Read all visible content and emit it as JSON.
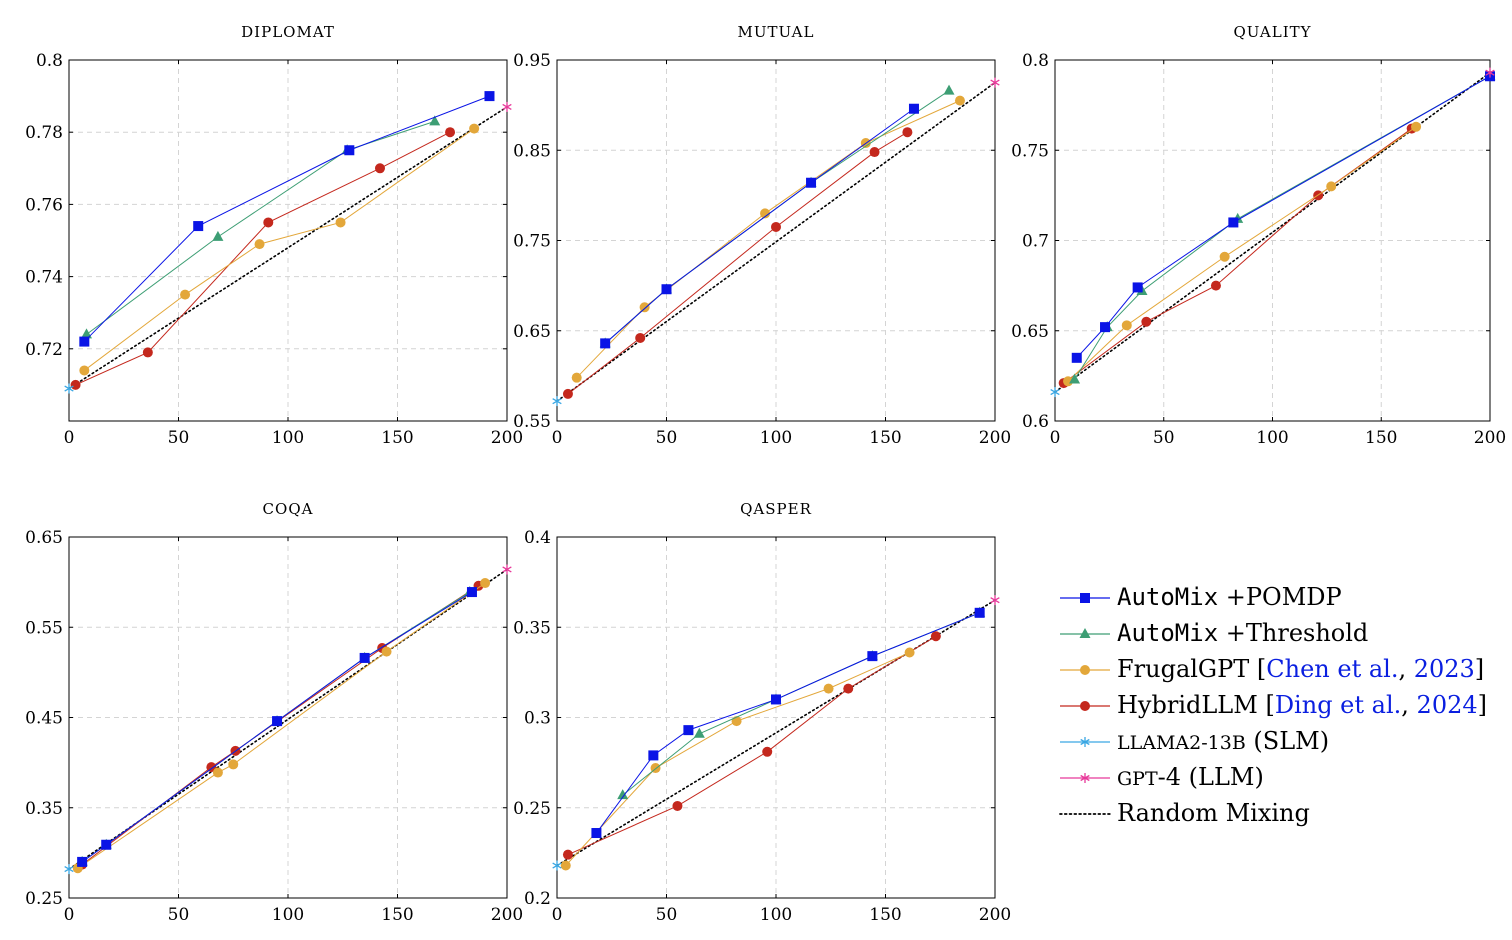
{
  "chart_data": [
    {
      "type": "line",
      "title": "DIPLOMAT",
      "xlim": [
        0,
        200
      ],
      "ylim": [
        0.7,
        0.8
      ],
      "xticks": [
        0,
        50,
        100,
        150,
        200
      ],
      "yticks": [
        0.72,
        0.74,
        0.76,
        0.78,
        0.8
      ],
      "ytick_labels": [
        "0.72",
        "0.74",
        "0.76",
        "0.78",
        "0.8"
      ],
      "grid": true,
      "series": [
        {
          "key": "pomdp",
          "x": [
            7,
            59,
            128,
            192
          ],
          "y": [
            0.722,
            0.754,
            0.775,
            0.79
          ]
        },
        {
          "key": "threshold",
          "x": [
            8,
            68,
            127,
            167
          ],
          "y": [
            0.724,
            0.751,
            0.775,
            0.783
          ]
        },
        {
          "key": "frugal",
          "x": [
            7,
            53,
            87,
            124,
            185
          ],
          "y": [
            0.714,
            0.735,
            0.749,
            0.755,
            0.781
          ]
        },
        {
          "key": "hybrid",
          "x": [
            3,
            36,
            91,
            142,
            174
          ],
          "y": [
            0.71,
            0.719,
            0.755,
            0.77,
            0.78
          ]
        },
        {
          "key": "slm",
          "x": [
            0
          ],
          "y": [
            0.709
          ]
        },
        {
          "key": "llm",
          "x": [
            200
          ],
          "y": [
            0.787
          ]
        },
        {
          "key": "random",
          "x": [
            0,
            200
          ],
          "y": [
            0.709,
            0.787
          ]
        }
      ]
    },
    {
      "type": "line",
      "title": "MUTUAL",
      "xlim": [
        0,
        200
      ],
      "ylim": [
        0.55,
        0.95
      ],
      "xticks": [
        0,
        50,
        100,
        150,
        200
      ],
      "yticks": [
        0.55,
        0.65,
        0.75,
        0.85,
        0.95
      ],
      "ytick_labels": [
        "0.55",
        "0.65",
        "0.75",
        "0.85",
        "0.95"
      ],
      "grid": true,
      "series": [
        {
          "key": "pomdp",
          "x": [
            22,
            50,
            116,
            163
          ],
          "y": [
            0.636,
            0.696,
            0.814,
            0.896
          ]
        },
        {
          "key": "threshold",
          "x": [
            22,
            50,
            116,
            179
          ],
          "y": [
            0.636,
            0.696,
            0.814,
            0.916
          ]
        },
        {
          "key": "frugal",
          "x": [
            9,
            40,
            95,
            141,
            184
          ],
          "y": [
            0.598,
            0.676,
            0.78,
            0.858,
            0.905
          ]
        },
        {
          "key": "hybrid",
          "x": [
            5,
            38,
            100,
            145,
            160
          ],
          "y": [
            0.58,
            0.642,
            0.765,
            0.848,
            0.87
          ]
        },
        {
          "key": "slm",
          "x": [
            0
          ],
          "y": [
            0.572
          ]
        },
        {
          "key": "llm",
          "x": [
            200
          ],
          "y": [
            0.925
          ]
        },
        {
          "key": "random",
          "x": [
            0,
            200
          ],
          "y": [
            0.572,
            0.925
          ]
        }
      ]
    },
    {
      "type": "line",
      "title": "QUALITY",
      "xlim": [
        0,
        200
      ],
      "ylim": [
        0.6,
        0.8
      ],
      "xticks": [
        0,
        50,
        100,
        150,
        200
      ],
      "yticks": [
        0.6,
        0.65,
        0.7,
        0.75,
        0.8
      ],
      "ytick_labels": [
        "0.6",
        "0.65",
        "0.7",
        "0.75",
        "0.8"
      ],
      "grid": true,
      "series": [
        {
          "key": "pomdp",
          "x": [
            10,
            23,
            38,
            82,
            200
          ],
          "y": [
            0.635,
            0.652,
            0.674,
            0.71,
            0.791
          ]
        },
        {
          "key": "threshold",
          "x": [
            9,
            24,
            40,
            84,
            200
          ],
          "y": [
            0.623,
            0.652,
            0.672,
            0.712,
            0.791
          ]
        },
        {
          "key": "frugal",
          "x": [
            6,
            33,
            78,
            127,
            166
          ],
          "y": [
            0.622,
            0.653,
            0.691,
            0.73,
            0.763
          ]
        },
        {
          "key": "hybrid",
          "x": [
            4,
            42,
            74,
            121,
            164
          ],
          "y": [
            0.621,
            0.655,
            0.675,
            0.725,
            0.762
          ]
        },
        {
          "key": "slm",
          "x": [
            0
          ],
          "y": [
            0.616
          ]
        },
        {
          "key": "llm",
          "x": [
            200
          ],
          "y": [
            0.793
          ]
        },
        {
          "key": "random",
          "x": [
            0,
            200
          ],
          "y": [
            0.616,
            0.793
          ]
        }
      ]
    },
    {
      "type": "line",
      "title": "COQA",
      "xlim": [
        0,
        200
      ],
      "ylim": [
        0.25,
        0.65
      ],
      "xticks": [
        0,
        50,
        100,
        150,
        200
      ],
      "yticks": [
        0.25,
        0.35,
        0.45,
        0.55,
        0.65
      ],
      "ytick_labels": [
        "0.25",
        "0.35",
        "0.45",
        "0.55",
        "0.65"
      ],
      "grid": true,
      "series": [
        {
          "key": "pomdp",
          "x": [
            6,
            17,
            95,
            135,
            184
          ],
          "y": [
            0.29,
            0.309,
            0.446,
            0.516,
            0.589
          ]
        },
        {
          "key": "threshold",
          "x": [
            6,
            17,
            95,
            135,
            183
          ],
          "y": [
            0.29,
            0.309,
            0.446,
            0.516,
            0.589
          ]
        },
        {
          "key": "frugal",
          "x": [
            4,
            68,
            75,
            145,
            190
          ],
          "y": [
            0.283,
            0.389,
            0.398,
            0.523,
            0.599
          ]
        },
        {
          "key": "hybrid",
          "x": [
            6,
            65,
            76,
            143,
            187
          ],
          "y": [
            0.287,
            0.395,
            0.413,
            0.527,
            0.596
          ]
        },
        {
          "key": "slm",
          "x": [
            0
          ],
          "y": [
            0.282
          ]
        },
        {
          "key": "llm",
          "x": [
            200
          ],
          "y": [
            0.614
          ]
        },
        {
          "key": "random",
          "x": [
            0,
            200
          ],
          "y": [
            0.282,
            0.614
          ]
        }
      ]
    },
    {
      "type": "line",
      "title": "QASPER",
      "xlim": [
        0,
        200
      ],
      "ylim": [
        0.2,
        0.4
      ],
      "xticks": [
        0,
        50,
        100,
        150,
        200
      ],
      "yticks": [
        0.2,
        0.25,
        0.3,
        0.35,
        0.4
      ],
      "ytick_labels": [
        "0.2",
        "0.25",
        "0.3",
        "0.35",
        "0.4"
      ],
      "grid": true,
      "series": [
        {
          "key": "pomdp",
          "x": [
            18,
            44,
            60,
            100,
            144,
            193
          ],
          "y": [
            0.236,
            0.279,
            0.293,
            0.31,
            0.334,
            0.358
          ]
        },
        {
          "key": "threshold",
          "x": [
            30,
            65,
            100,
            144,
            193
          ],
          "y": [
            0.257,
            0.291,
            0.31,
            0.334,
            0.358
          ]
        },
        {
          "key": "frugal",
          "x": [
            4,
            45,
            82,
            124,
            161
          ],
          "y": [
            0.218,
            0.272,
            0.298,
            0.316,
            0.336
          ]
        },
        {
          "key": "hybrid",
          "x": [
            5,
            55,
            96,
            133,
            173
          ],
          "y": [
            0.224,
            0.251,
            0.281,
            0.316,
            0.345
          ]
        },
        {
          "key": "slm",
          "x": [
            0
          ],
          "y": [
            0.218
          ]
        },
        {
          "key": "llm",
          "x": [
            200
          ],
          "y": [
            0.365
          ]
        },
        {
          "key": "random",
          "x": [
            0,
            200
          ],
          "y": [
            0.218,
            0.365
          ]
        }
      ]
    }
  ],
  "legend": {
    "position": "right",
    "entries": [
      {
        "key": "pomdp",
        "parts": [
          {
            "text": "AutoMix",
            "style": "mono"
          },
          {
            "text": " +POMDP",
            "style": "normal"
          }
        ]
      },
      {
        "key": "threshold",
        "parts": [
          {
            "text": "AutoMix",
            "style": "mono"
          },
          {
            "text": " +Threshold",
            "style": "normal"
          }
        ]
      },
      {
        "key": "frugal",
        "parts": [
          {
            "text": "FrugalGPT [",
            "style": "normal"
          },
          {
            "text": "Chen et al.",
            "style": "link"
          },
          {
            "text": ", ",
            "style": "normal"
          },
          {
            "text": "2023",
            "style": "link"
          },
          {
            "text": "]",
            "style": "normal"
          }
        ]
      },
      {
        "key": "hybrid",
        "parts": [
          {
            "text": "HybridLLM [",
            "style": "normal"
          },
          {
            "text": "Ding et al.",
            "style": "link"
          },
          {
            "text": ", ",
            "style": "normal"
          },
          {
            "text": "2024",
            "style": "link"
          },
          {
            "text": "]",
            "style": "normal"
          }
        ]
      },
      {
        "key": "slm",
        "parts": [
          {
            "text": "LLAMA2-13B",
            "style": "smallcaps"
          },
          {
            "text": " (SLM)",
            "style": "normal"
          }
        ]
      },
      {
        "key": "llm",
        "parts": [
          {
            "text": "GPT",
            "style": "smallcaps"
          },
          {
            "text": "-4 (LLM)",
            "style": "normal"
          }
        ]
      },
      {
        "key": "random",
        "parts": [
          {
            "text": "Random Mixing",
            "style": "normal"
          }
        ]
      }
    ]
  },
  "series_styles": {
    "pomdp": {
      "color": "#0a14e6",
      "marker": "square"
    },
    "threshold": {
      "color": "#3d9e74",
      "marker": "triangle"
    },
    "frugal": {
      "color": "#e3a73a",
      "marker": "circle"
    },
    "hybrid": {
      "color": "#c4281d",
      "marker": "circle"
    },
    "slm": {
      "color": "#3aa7e3",
      "marker": "star"
    },
    "llm": {
      "color": "#e8399a",
      "marker": "star"
    },
    "random": {
      "color": "#000000",
      "marker": "none",
      "dash": "dotted"
    }
  }
}
